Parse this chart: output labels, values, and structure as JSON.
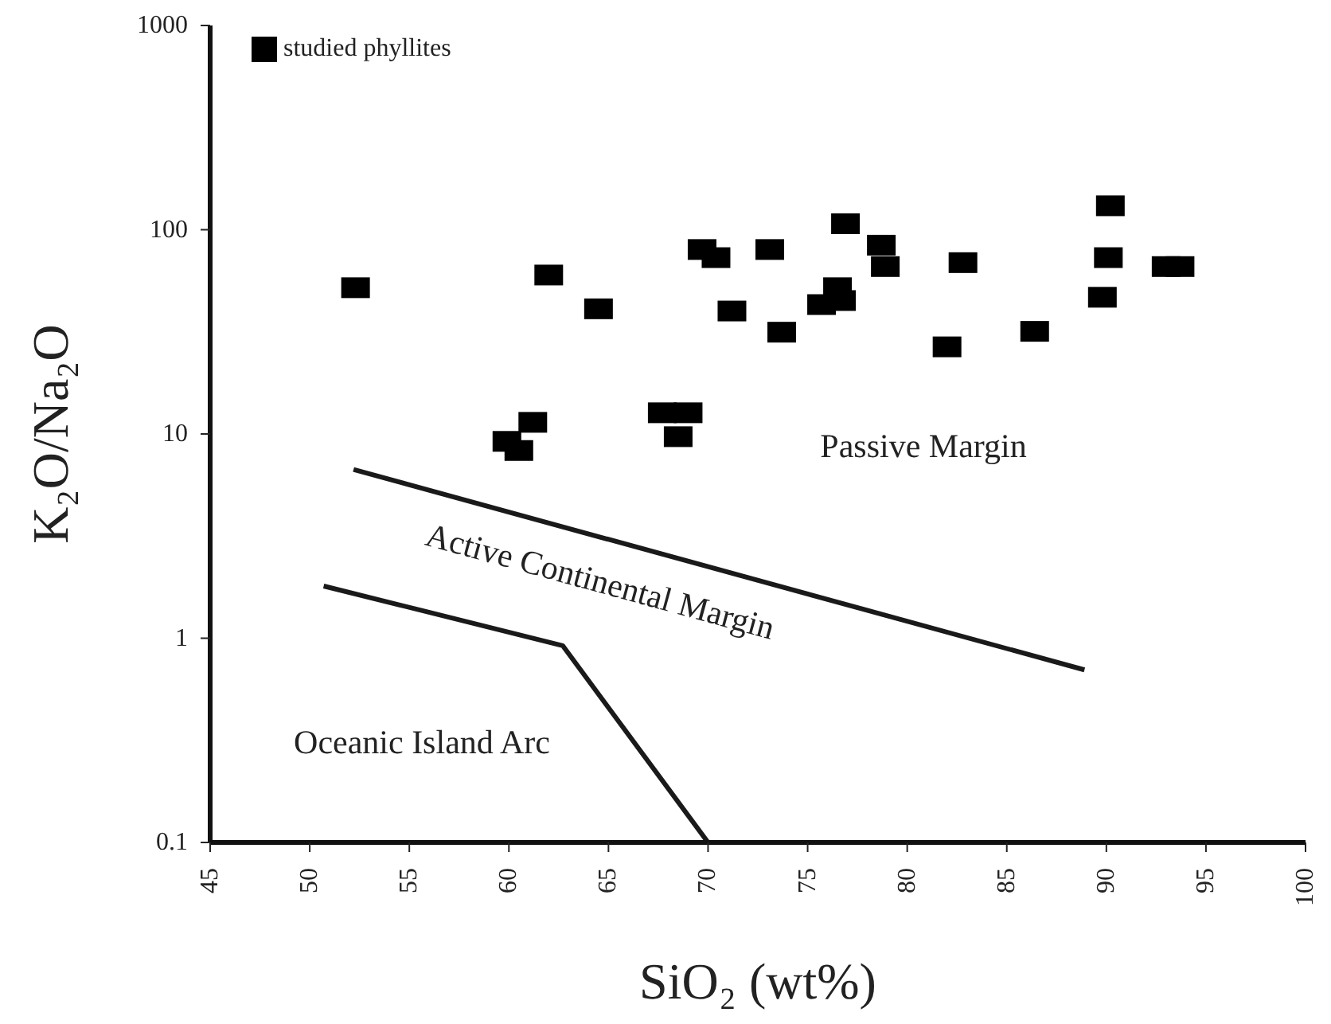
{
  "chart_data": {
    "type": "scatter",
    "xlabel": "SiO₂ (wt%)",
    "ylabel": "K₂O/Na₂O",
    "log": "y",
    "xlim": [
      45,
      100
    ],
    "xticks": [
      45,
      50,
      55,
      60,
      65,
      70,
      75,
      80,
      85,
      90,
      95,
      100
    ],
    "ylim": [
      0.1,
      1000
    ],
    "yticks": [
      0.1,
      1,
      10,
      100,
      1000
    ],
    "grid": false,
    "legend": "top left",
    "marker": "square",
    "series": [
      {
        "name": "studied phyllites",
        "color": "#000000",
        "x": [
          52.3,
          62.0,
          64.5,
          69.7,
          70.4,
          71.2,
          61.2,
          59.9,
          60.5,
          67.7,
          69.0,
          68.5,
          73.1,
          76.9,
          78.7,
          78.9,
          76.5,
          76.7,
          75.7,
          73.7,
          82.8,
          82.0,
          86.4,
          90.2,
          90.1,
          89.8,
          93.0,
          93.7
        ],
        "values": [
          52,
          60,
          41,
          80,
          73,
          40,
          11.4,
          9.2,
          8.3,
          12.7,
          12.7,
          9.7,
          80,
          107,
          84,
          66,
          52,
          45,
          43,
          31.5,
          69,
          26.7,
          31.8,
          131,
          73,
          46.7,
          66,
          66
        ]
      },
      {
        "type": "line",
        "color": "#1a1a1a",
        "marker": "none",
        "line_style": "solid",
        "x": [
          52.2,
          88.9
        ],
        "values": [
          6.7,
          0.7
        ]
      },
      {
        "type": "line",
        "color": "#1a1a1a",
        "marker": "none",
        "line_style": "solid",
        "x": [
          50.7,
          62.7,
          70
        ],
        "values": [
          1.8,
          0.92,
          0.1
        ]
      }
    ],
    "annotations": [
      "Passive Margin",
      "Active Continental Margin",
      "Oceanic Island Arc"
    ]
  }
}
